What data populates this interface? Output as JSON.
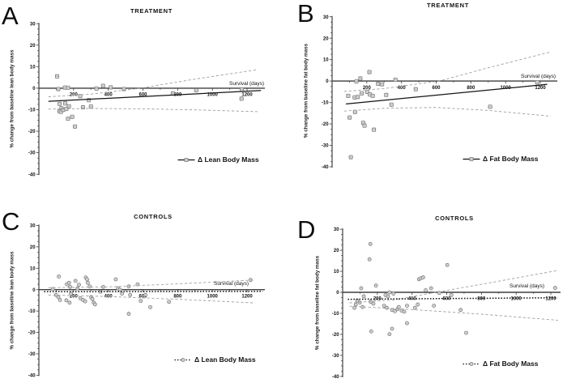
{
  "colors": {
    "axis": "#3f3f3f",
    "tick_text": "#111111",
    "fit_line": "#141414",
    "ci_line": "#9e9e9e",
    "marker_stroke": "#757575",
    "marker_fill": "#e4e4e4",
    "marker_inner": "#9a9a9a"
  },
  "chart_data": [
    {
      "panel_label": "A",
      "type": "scatter",
      "title": "TREATMENT",
      "xlabel": "Survival (days)",
      "ylabel": "% change from baseline lean body mass",
      "legend": {
        "label": "Δ Lean Body Mass",
        "style": "solid"
      },
      "marker": "square",
      "xlim": [
        0,
        1300
      ],
      "ylim": [
        -40,
        30
      ],
      "xticks": [
        200,
        400,
        600,
        800,
        1000,
        1200
      ],
      "yticks": [
        30,
        20,
        10,
        0,
        -10,
        -20,
        -30,
        -40
      ],
      "grid": false,
      "legend_position": "lower-right",
      "points": [
        [
          105,
          5.5
        ],
        [
          112,
          -0.4
        ],
        [
          150,
          0.3
        ],
        [
          168,
          0.2
        ],
        [
          120,
          -7.3
        ],
        [
          152,
          -7.1
        ],
        [
          173,
          -8.4
        ],
        [
          130,
          -9.3
        ],
        [
          118,
          -10.6
        ],
        [
          127,
          -11.0
        ],
        [
          140,
          -10.1
        ],
        [
          158,
          -9.7
        ],
        [
          238,
          -3.7
        ],
        [
          254,
          -8.9
        ],
        [
          168,
          -14.2
        ],
        [
          192,
          -13.3
        ],
        [
          208,
          -17.8
        ],
        [
          288,
          -5.6
        ],
        [
          300,
          -8.5
        ],
        [
          332,
          -0.2
        ],
        [
          370,
          1.1
        ],
        [
          414,
          0.4
        ],
        [
          490,
          -0.4
        ],
        [
          772,
          -2.4
        ],
        [
          907,
          -1.0
        ],
        [
          1170,
          -0.7
        ],
        [
          1168,
          -4.9
        ]
      ],
      "fit": {
        "style": "solid",
        "pts": [
          [
            55,
            -6.1
          ],
          [
            1280,
            -1.1
          ]
        ]
      },
      "ci_upper": [
        [
          55,
          -4.0
        ],
        [
          300,
          -2.8
        ],
        [
          586,
          0
        ],
        [
          900,
          4.2
        ],
        [
          1260,
          8.6
        ]
      ],
      "ci_lower": [
        [
          55,
          -9.7
        ],
        [
          300,
          -9.4
        ],
        [
          600,
          -9.6
        ],
        [
          900,
          -10.1
        ],
        [
          1260,
          -10.9
        ]
      ]
    },
    {
      "panel_label": "B",
      "type": "scatter",
      "title": "TREATMENT",
      "xlabel": "Survival (days)",
      "ylabel": "% change from baseline fat body mass",
      "legend": {
        "label": "Δ Fat Body Mass",
        "style": "solid"
      },
      "marker": "square",
      "xlim": [
        0,
        1300
      ],
      "ylim": [
        -40,
        30
      ],
      "xticks": [
        200,
        400,
        600,
        800,
        1000,
        1200
      ],
      "yticks": [
        30,
        20,
        10,
        0,
        -10,
        -20,
        -30,
        -40
      ],
      "grid": false,
      "legend_position": "lower-right",
      "points": [
        [
          93,
          -6.9
        ],
        [
          101,
          -17.0
        ],
        [
          108,
          -35.5
        ],
        [
          130,
          -7.6
        ],
        [
          132,
          -14.4
        ],
        [
          140,
          -0.2
        ],
        [
          148,
          -7.4
        ],
        [
          163,
          1.2
        ],
        [
          171,
          -5.7
        ],
        [
          179,
          -19.5
        ],
        [
          187,
          -20.8
        ],
        [
          202,
          -5.0
        ],
        [
          215,
          4.2
        ],
        [
          218,
          -6.3
        ],
        [
          234,
          -6.9
        ],
        [
          241,
          -22.7
        ],
        [
          265,
          -1.3
        ],
        [
          288,
          -1.5
        ],
        [
          312,
          -6.5
        ],
        [
          342,
          -11.0
        ],
        [
          365,
          0.6
        ],
        [
          482,
          -3.8
        ],
        [
          911,
          -12.0
        ],
        [
          1182,
          -0.6
        ]
      ],
      "fit": {
        "style": "solid",
        "pts": [
          [
            80,
            -10.7
          ],
          [
            1240,
            -1.5
          ]
        ]
      },
      "ci_upper": [
        [
          70,
          -4.8
        ],
        [
          300,
          -3.5
        ],
        [
          617,
          0
        ],
        [
          900,
          6.2
        ],
        [
          1260,
          13.6
        ]
      ],
      "ci_lower": [
        [
          70,
          -14.0
        ],
        [
          300,
          -12.7
        ],
        [
          600,
          -12.3
        ],
        [
          900,
          -13.7
        ],
        [
          1260,
          -16.4
        ]
      ]
    },
    {
      "panel_label": "C",
      "type": "scatter",
      "title": "CONTROLS",
      "xlabel": "Survival (days)",
      "ylabel": "% change from baseline lean body mass",
      "legend": {
        "label": "Δ Lean Body Mass",
        "style": "dotted"
      },
      "marker": "circle",
      "xlim": [
        0,
        1300
      ],
      "ylim": [
        -40,
        30
      ],
      "xticks": [
        200,
        400,
        600,
        800,
        1000,
        1200
      ],
      "yticks": [
        30,
        20,
        10,
        0,
        -10,
        -20,
        -30,
        -40
      ],
      "grid": false,
      "legend_position": "lower-right",
      "points": [
        [
          115,
          6.1
        ],
        [
          80,
          0.3
        ],
        [
          99,
          -2.5
        ],
        [
          112,
          -3.5
        ],
        [
          122,
          -4.8
        ],
        [
          158,
          -5.0
        ],
        [
          161,
          2.5
        ],
        [
          174,
          3.2
        ],
        [
          180,
          1.3
        ],
        [
          185,
          -1.9
        ],
        [
          177,
          -6.1
        ],
        [
          211,
          4.1
        ],
        [
          223,
          0.6
        ],
        [
          231,
          2.3
        ],
        [
          239,
          -4.0
        ],
        [
          254,
          -4.8
        ],
        [
          267,
          -5.5
        ],
        [
          270,
          5.7
        ],
        [
          278,
          4.8
        ],
        [
          282,
          3.2
        ],
        [
          293,
          1.5
        ],
        [
          301,
          -3.5
        ],
        [
          308,
          -4.4
        ],
        [
          316,
          -6.1
        ],
        [
          324,
          -6.9
        ],
        [
          355,
          -1.0
        ],
        [
          371,
          1.3
        ],
        [
          443,
          4.8
        ],
        [
          456,
          0.6
        ],
        [
          468,
          0.0
        ],
        [
          479,
          -1.9
        ],
        [
          518,
          1.5
        ],
        [
          526,
          -2.5
        ],
        [
          518,
          -11.3
        ],
        [
          569,
          2.5
        ],
        [
          587,
          -5.3
        ],
        [
          614,
          -2.5
        ],
        [
          642,
          -8.2
        ],
        [
          750,
          -5.7
        ],
        [
          1220,
          4.5
        ]
      ],
      "fit": {
        "style": "dotted",
        "pts": [
          [
            30,
            -1.0
          ],
          [
            1290,
            -0.8
          ]
        ]
      },
      "ci_upper": [
        [
          55,
          0.9
        ],
        [
          400,
          1.3
        ],
        [
          800,
          2.7
        ],
        [
          1240,
          4.5
        ]
      ],
      "ci_lower": [
        [
          55,
          -2.5
        ],
        [
          400,
          -3.2
        ],
        [
          800,
          -4.5
        ],
        [
          1240,
          -6.2
        ]
      ]
    },
    {
      "panel_label": "D",
      "type": "scatter",
      "title": "CONTROLS",
      "xlabel": "Survival (days)",
      "ylabel": "% change from baseline fat body mass",
      "legend": {
        "label": "Δ Fat Body Mass",
        "style": "dotted"
      },
      "marker": "circle",
      "xlim": [
        0,
        1300
      ],
      "ylim": [
        -40,
        30
      ],
      "xticks": [
        200,
        400,
        600,
        800,
        1000,
        1200
      ],
      "yticks": [
        30,
        20,
        10,
        0,
        -10,
        -20,
        -30,
        -40
      ],
      "grid": false,
      "legend_position": "lower-right",
      "points": [
        [
          68,
          -7.4
        ],
        [
          76,
          -5.8
        ],
        [
          84,
          -3.9
        ],
        [
          99,
          -4.9
        ],
        [
          107,
          1.9
        ],
        [
          115,
          -7.0
        ],
        [
          122,
          -1.9
        ],
        [
          155,
          15.7
        ],
        [
          160,
          23.0
        ],
        [
          161,
          -4.5
        ],
        [
          165,
          -18.6
        ],
        [
          177,
          -5.4
        ],
        [
          192,
          3.2
        ],
        [
          239,
          -6.4
        ],
        [
          247,
          -1.3
        ],
        [
          254,
          -7.4
        ],
        [
          262,
          -1.9
        ],
        [
          270,
          0.0
        ],
        [
          270,
          -19.9
        ],
        [
          285,
          -8.4
        ],
        [
          285,
          -17.3
        ],
        [
          293,
          -0.6
        ],
        [
          301,
          -9.0
        ],
        [
          316,
          -8.0
        ],
        [
          324,
          -7.0
        ],
        [
          340,
          -8.7
        ],
        [
          355,
          -9.2
        ],
        [
          371,
          -6.4
        ],
        [
          371,
          -14.7
        ],
        [
          417,
          -7.4
        ],
        [
          433,
          -5.8
        ],
        [
          440,
          6.2
        ],
        [
          451,
          6.7
        ],
        [
          464,
          7.1
        ],
        [
          479,
          1.0
        ],
        [
          510,
          1.9
        ],
        [
          526,
          -6.4
        ],
        [
          557,
          -0.3
        ],
        [
          603,
          13.0
        ],
        [
          627,
          -1.3
        ],
        [
          680,
          -8.4
        ],
        [
          712,
          -19.3
        ],
        [
          1225,
          2.1
        ]
      ],
      "fit": {
        "style": "dotted",
        "pts": [
          [
            30,
            -3.3
          ],
          [
            1240,
            -2.6
          ]
        ]
      },
      "ci_upper": [
        [
          40,
          -5.0
        ],
        [
          300,
          -3.6
        ],
        [
          535,
          0
        ],
        [
          800,
          3.8
        ],
        [
          1240,
          10.4
        ]
      ],
      "ci_lower": [
        [
          40,
          -6.6
        ],
        [
          400,
          -8.2
        ],
        [
          800,
          -10.4
        ],
        [
          1240,
          -13.3
        ]
      ]
    }
  ]
}
